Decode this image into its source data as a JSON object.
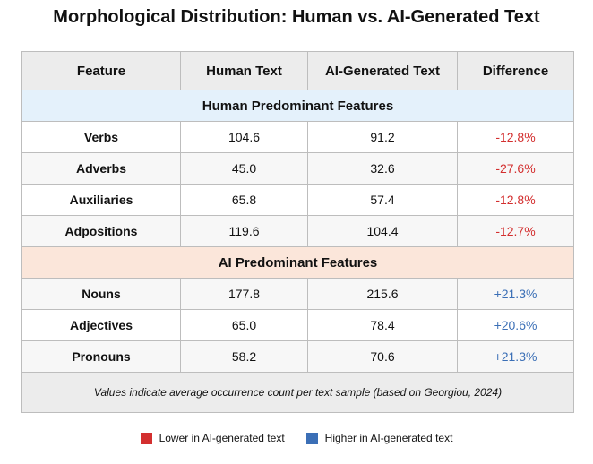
{
  "title": "Morphological Distribution: Human vs. AI-Generated Text",
  "table": {
    "header": [
      "Feature",
      "Human Text",
      "AI-Generated Text",
      "Difference"
    ],
    "sections": [
      {
        "title": "Human Predominant Features",
        "rows": [
          [
            "Verbs",
            "104.6",
            "91.2",
            "-12.8%"
          ],
          [
            "Adverbs",
            "45.0",
            "32.6",
            "-27.6%"
          ],
          [
            "Auxiliaries",
            "65.8",
            "57.4",
            "-12.8%"
          ],
          [
            "Adpositions",
            "119.6",
            "104.4",
            "-12.7%"
          ]
        ]
      },
      {
        "title": "AI Predominant Features",
        "rows": [
          [
            "Nouns",
            "177.8",
            "215.6",
            "+21.3%"
          ],
          [
            "Adjectives",
            "65.0",
            "78.4",
            "+20.6%"
          ],
          [
            "Pronouns",
            "58.2",
            "70.6",
            "+21.3%"
          ]
        ]
      }
    ],
    "note": "Values indicate average occurrence count per text sample (based on Georgiou, 2024)"
  },
  "legend": [
    "Lower in AI-generated text",
    "Higher in AI-generated text"
  ]
}
